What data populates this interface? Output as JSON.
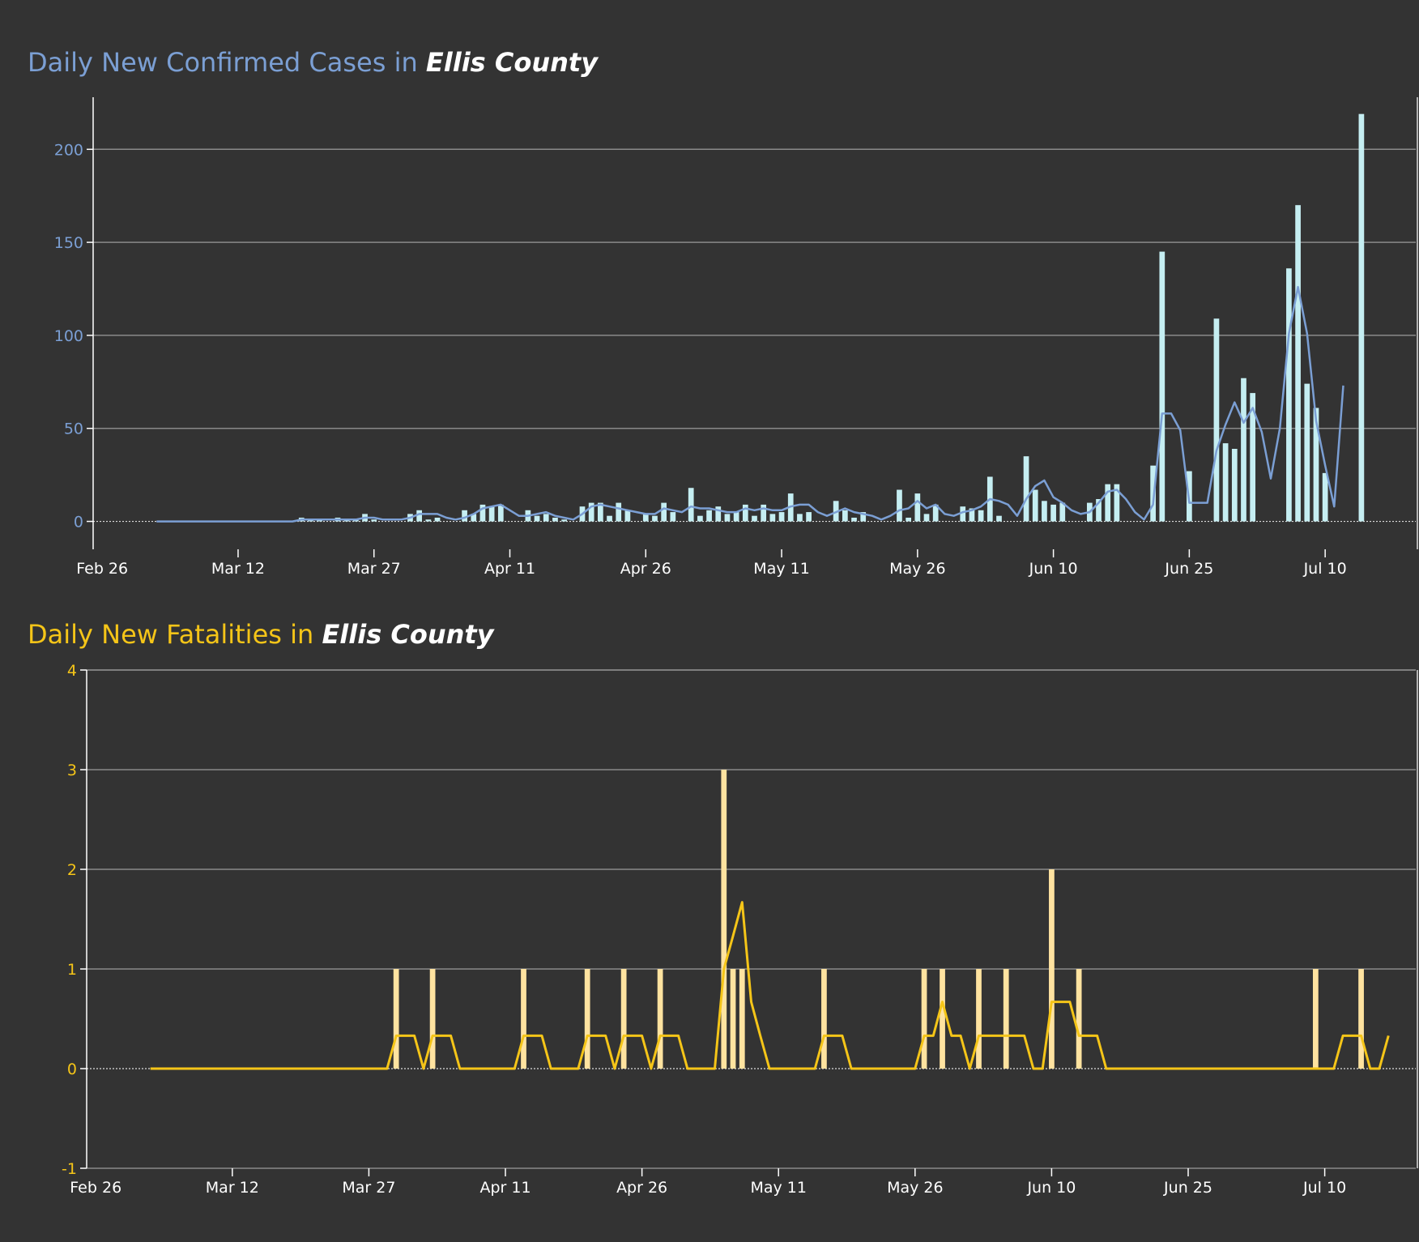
{
  "colors": {
    "background": "#333333",
    "cases_title": "#7b9fd4",
    "cases_bar": "#c5eef2",
    "cases_line": "#7b9fd4",
    "fatalities_title": "#f5c518",
    "fatalities_bar": "#ffe3a0",
    "fatalities_line": "#f5c518",
    "grid": "#8a8a8a",
    "axis_text": "#ffffff"
  },
  "chart_data": [
    {
      "type": "bar",
      "title_prefix": "Daily New Confirmed Cases in ",
      "title_place": "Ellis County",
      "x_tick_labels": [
        "Feb 26",
        "Mar 12",
        "Mar 27",
        "Apr 11",
        "Apr 26",
        "May 11",
        "May 26",
        "Jun 10",
        "Jun 25",
        "Jul 10"
      ],
      "y_tick_labels": [
        "0",
        "50",
        "100",
        "150",
        "200"
      ],
      "ylim": [
        -15,
        228
      ],
      "x_range_days": [
        -1,
        145
      ],
      "first_day_offset": 6,
      "grid": true,
      "series": [
        {
          "kind": "bar",
          "values": [
            0,
            0,
            0,
            0,
            0,
            0,
            0,
            0,
            0,
            0,
            0,
            0,
            0,
            0,
            0,
            0,
            2,
            1,
            1,
            0,
            2,
            1,
            1,
            4,
            1,
            0,
            0,
            0,
            4,
            6,
            1,
            2,
            0,
            0,
            6,
            4,
            9,
            8,
            9,
            0,
            0,
            6,
            3,
            4,
            2,
            1,
            0,
            8,
            10,
            10,
            3,
            10,
            6,
            0,
            4,
            3,
            10,
            5,
            0,
            18,
            3,
            6,
            8,
            4,
            5,
            9,
            3,
            9,
            4,
            5,
            15,
            4,
            5,
            0,
            0,
            11,
            6,
            2,
            5,
            0,
            0,
            0,
            17,
            2,
            15,
            4,
            9,
            0,
            0,
            8,
            7,
            6,
            24,
            3,
            0,
            0,
            35,
            17,
            11,
            9,
            10,
            0,
            0,
            10,
            12,
            20,
            20,
            0,
            0,
            0,
            30,
            145,
            0,
            0,
            27,
            0,
            0,
            109,
            42,
            39,
            77,
            69,
            0,
            0,
            0,
            136,
            170,
            74,
            61,
            26,
            0,
            0,
            0,
            219
          ]
        },
        {
          "kind": "line",
          "values": [
            0,
            0,
            0,
            0,
            0,
            0,
            0,
            0,
            0,
            0,
            0,
            0,
            0,
            0,
            0,
            0,
            1,
            1,
            1,
            1,
            1,
            1,
            1,
            2,
            2,
            1,
            1,
            1,
            2,
            4,
            4,
            4,
            2,
            1,
            2,
            4,
            7,
            8,
            9,
            6,
            3,
            3,
            4,
            5,
            3,
            2,
            1,
            4,
            8,
            9,
            8,
            7,
            6,
            5,
            4,
            4,
            7,
            6,
            5,
            8,
            7,
            7,
            6,
            5,
            5,
            7,
            6,
            7,
            6,
            6,
            8,
            9,
            9,
            5,
            3,
            5,
            7,
            5,
            4,
            3,
            1,
            3,
            6,
            7,
            11,
            7,
            9,
            4,
            3,
            5,
            6,
            8,
            12,
            11,
            9,
            3,
            12,
            19,
            22,
            13,
            10,
            6,
            4,
            5,
            10,
            16,
            17,
            12,
            5,
            1,
            9,
            58,
            58,
            49,
            10,
            10,
            10,
            38,
            52,
            64,
            53,
            61,
            48,
            23,
            50,
            101,
            126,
            101,
            54,
            30,
            8,
            73
          ]
        }
      ]
    },
    {
      "type": "bar",
      "title_prefix": "Daily New Fatalities in ",
      "title_place": "Ellis County",
      "x_tick_labels": [
        "Feb 26",
        "Mar 12",
        "Mar 27",
        "Apr 11",
        "Apr 26",
        "May 11",
        "May 26",
        "Jun 10",
        "Jun 25",
        "Jul 10"
      ],
      "y_tick_labels": [
        "-1",
        "0",
        "1",
        "2",
        "3",
        "4"
      ],
      "ylim": [
        -1,
        4
      ],
      "x_range_days": [
        -1,
        145
      ],
      "first_day_offset": 6,
      "grid": true,
      "series": [
        {
          "kind": "bar",
          "values": [
            0,
            0,
            0,
            0,
            0,
            0,
            0,
            0,
            0,
            0,
            0,
            0,
            0,
            0,
            0,
            0,
            0,
            0,
            0,
            0,
            0,
            0,
            0,
            0,
            0,
            0,
            0,
            1,
            0,
            0,
            0,
            1,
            0,
            0,
            0,
            0,
            0,
            0,
            0,
            0,
            0,
            1,
            0,
            0,
            0,
            0,
            0,
            0,
            1,
            0,
            0,
            0,
            1,
            0,
            0,
            0,
            1,
            0,
            0,
            0,
            0,
            0,
            0,
            3,
            1,
            1,
            0,
            0,
            0,
            0,
            0,
            0,
            0,
            0,
            1,
            0,
            0,
            0,
            0,
            0,
            0,
            0,
            0,
            0,
            0,
            1,
            0,
            1,
            0,
            0,
            0,
            1,
            0,
            0,
            1,
            0,
            0,
            0,
            0,
            2,
            0,
            0,
            1,
            0,
            0,
            0,
            0,
            0,
            0,
            0,
            0,
            0,
            0,
            0,
            0,
            0,
            0,
            0,
            0,
            0,
            0,
            0,
            0,
            0,
            0,
            0,
            0,
            0,
            1,
            0,
            0,
            0,
            0,
            1
          ]
        },
        {
          "kind": "line",
          "values": [
            0,
            0,
            0,
            0,
            0,
            0,
            0,
            0,
            0,
            0,
            0,
            0,
            0,
            0,
            0,
            0,
            0,
            0,
            0,
            0,
            0,
            0,
            0,
            0,
            0,
            0,
            0,
            0.33,
            0.33,
            0.33,
            0,
            0.33,
            0.33,
            0.33,
            0,
            0,
            0,
            0,
            0,
            0,
            0,
            0.33,
            0.33,
            0.33,
            0,
            0,
            0,
            0,
            0.33,
            0.33,
            0.33,
            0,
            0.33,
            0.33,
            0.33,
            0,
            0.33,
            0.33,
            0.33,
            0,
            0,
            0,
            0,
            1,
            1.33,
            1.67,
            0.67,
            0.33,
            0,
            0,
            0,
            0,
            0,
            0,
            0.33,
            0.33,
            0.33,
            0,
            0,
            0,
            0,
            0,
            0,
            0,
            0,
            0.33,
            0.33,
            0.67,
            0.33,
            0.33,
            0,
            0.33,
            0.33,
            0.33,
            0.33,
            0.33,
            0.33,
            0,
            0,
            0.67,
            0.67,
            0.67,
            0.33,
            0.33,
            0.33,
            0,
            0,
            0,
            0,
            0,
            0,
            0,
            0,
            0,
            0,
            0,
            0,
            0,
            0,
            0,
            0,
            0,
            0,
            0,
            0,
            0,
            0,
            0,
            0,
            0,
            0,
            0.33,
            0.33,
            0.33,
            0,
            0,
            0.33
          ]
        }
      ]
    }
  ]
}
